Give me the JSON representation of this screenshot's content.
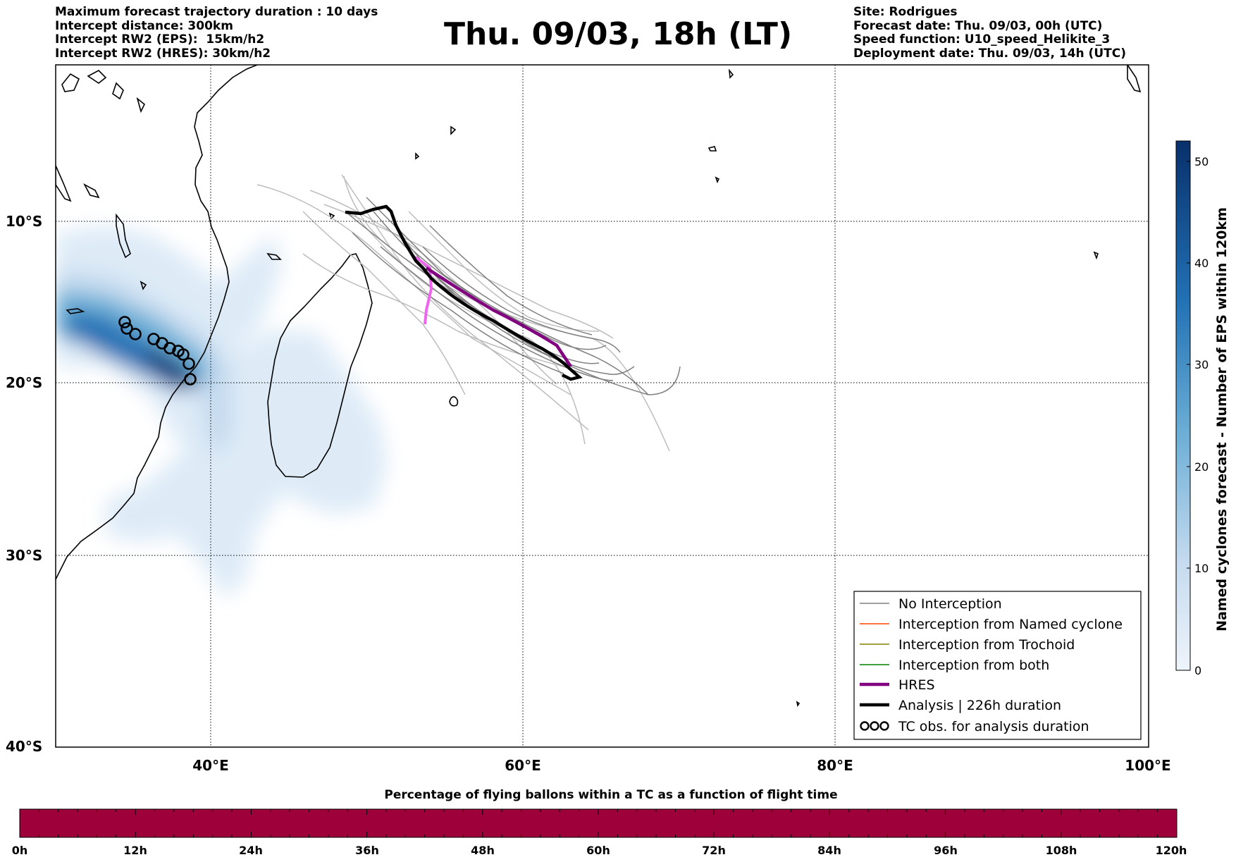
{
  "header": {
    "left_lines": [
      "Maximum forecast trajectory duration : 10 days",
      "Intercept distance: 300km",
      "Intercept RW2 (EPS):  15km/h2",
      "Intercept RW2 (HRES): 30km/h2"
    ],
    "title": "Thu. 09/03, 18h (LT)",
    "right_lines": [
      "Site: Rodrigues",
      "Forecast date: Thu. 09/03, 00h (UTC)",
      "Speed function: U10_speed_Helikite_3",
      "Deployment date: Thu. 09/03, 14h (UTC)"
    ]
  },
  "map": {
    "lon_ticks": [
      "40°E",
      "60°E",
      "80°E",
      "100°E"
    ],
    "lat_ticks": [
      "10°S",
      "20°S",
      "30°S",
      "40°S"
    ],
    "grid": "dotted",
    "legend": {
      "placement": "lower-right",
      "entries": [
        {
          "label": "No Interception",
          "color": "#808080"
        },
        {
          "label": "Interception from Named cyclone",
          "color": "#ff4500"
        },
        {
          "label": "Interception from Trochoid",
          "color": "#808000"
        },
        {
          "label": "Interception from both",
          "color": "#008000"
        },
        {
          "label": "HRES",
          "color": "#800080"
        },
        {
          "label": "Analysis | 226h duration",
          "color": "#000000"
        },
        {
          "label": "TC obs. for analysis duration",
          "color": "#000000",
          "icon": "cyclone-symbol-icon"
        }
      ]
    }
  },
  "colorbar_right": {
    "label": "Named cyclones forecast - Number of EPS within 120km",
    "ticks": [
      "0",
      "10",
      "20",
      "30",
      "40",
      "50"
    ],
    "range": [
      0,
      52
    ],
    "colors": [
      "#e6eff9",
      "#08306b"
    ]
  },
  "bottom_bar": {
    "title": "Percentage of flying ballons within a TC as a function of flight time",
    "ticks": [
      "0h",
      "12h",
      "24h",
      "36h",
      "48h",
      "60h",
      "72h",
      "84h",
      "96h",
      "108h",
      "120h"
    ],
    "fill_color": "#9e003a"
  }
}
